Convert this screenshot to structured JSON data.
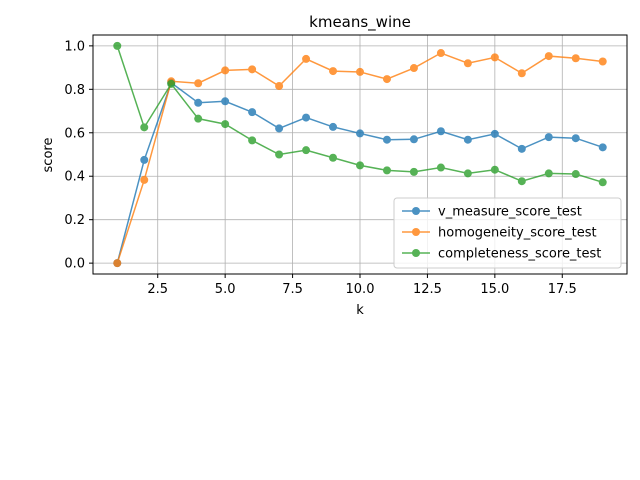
{
  "chart_data": {
    "type": "line",
    "title": "kmeans_wine",
    "xlabel": "k",
    "ylabel": "score",
    "xlim": [
      0.1,
      19.9
    ],
    "ylim": [
      -0.05,
      1.05
    ],
    "xticks": [
      2.5,
      5.0,
      7.5,
      10.0,
      12.5,
      15.0,
      17.5
    ],
    "xtick_labels": [
      "2.5",
      "5.0",
      "7.5",
      "10.0",
      "12.5",
      "15.0",
      "17.5"
    ],
    "yticks": [
      0.0,
      0.2,
      0.4,
      0.6,
      0.8,
      1.0
    ],
    "ytick_labels": [
      "0.0",
      "0.2",
      "0.4",
      "0.6",
      "0.8",
      "1.0"
    ],
    "grid": true,
    "legend_position": "lower-right",
    "x": [
      1,
      2,
      3,
      4,
      5,
      6,
      7,
      8,
      9,
      10,
      11,
      12,
      13,
      14,
      15,
      16,
      17,
      18,
      19
    ],
    "series": [
      {
        "name": "v_measure_score_test",
        "color": "#1f77b4",
        "values": [
          0.0,
          0.475,
          0.83,
          0.738,
          0.745,
          0.695,
          0.62,
          0.67,
          0.627,
          0.597,
          0.568,
          0.57,
          0.607,
          0.568,
          0.595,
          0.526,
          0.58,
          0.575,
          0.533
        ]
      },
      {
        "name": "homogeneity_score_test",
        "color": "#ff7f0e",
        "values": [
          0.0,
          0.383,
          0.837,
          0.828,
          0.887,
          0.892,
          0.815,
          0.94,
          0.884,
          0.88,
          0.847,
          0.898,
          0.967,
          0.92,
          0.947,
          0.874,
          0.953,
          0.943,
          0.928
        ]
      },
      {
        "name": "completeness_score_test",
        "color": "#2ca02c",
        "values": [
          1.0,
          0.625,
          0.825,
          0.665,
          0.64,
          0.565,
          0.5,
          0.52,
          0.485,
          0.45,
          0.427,
          0.42,
          0.44,
          0.413,
          0.43,
          0.377,
          0.413,
          0.41,
          0.372
        ]
      }
    ]
  }
}
